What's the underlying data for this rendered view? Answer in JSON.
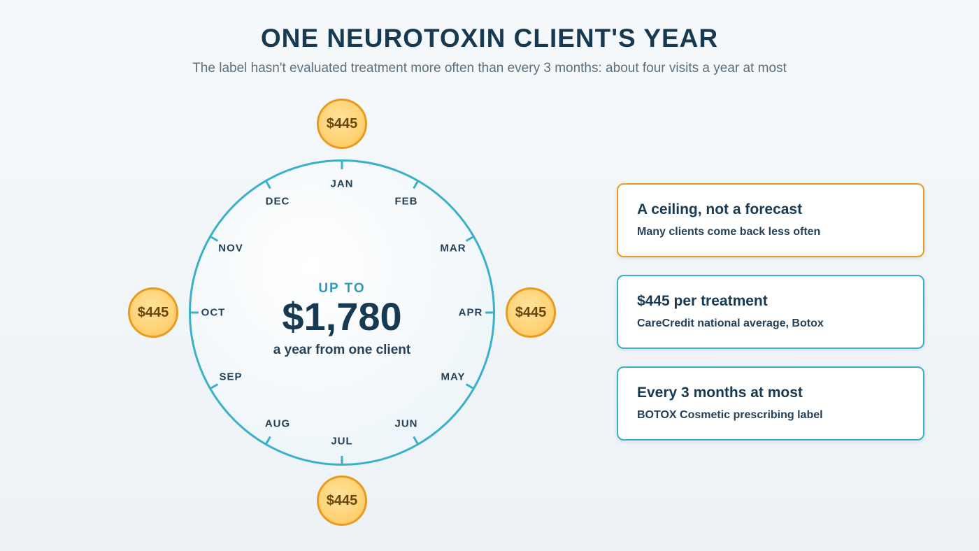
{
  "title": "ONE NEUROTOXIN CLIENT'S YEAR",
  "subtitle": "The label hasn't evaluated treatment more often than every 3 months: about four visits a year at most",
  "dial": {
    "months": [
      "JAN",
      "FEB",
      "MAR",
      "APR",
      "MAY",
      "JUN",
      "JUL",
      "AUG",
      "SEP",
      "OCT",
      "NOV",
      "DEC"
    ],
    "center": {
      "prefix": "UP TO",
      "amount": "$1,780",
      "caption": "a year from one client"
    },
    "treatments": [
      {
        "month": "JAN",
        "price": "$445"
      },
      {
        "month": "APR",
        "price": "$445"
      },
      {
        "month": "JUL",
        "price": "$445"
      },
      {
        "month": "OCT",
        "price": "$445"
      }
    ]
  },
  "cards": [
    {
      "title": "A ceiling, not a forecast",
      "text": "Many clients come back less often",
      "accent": "#e89b1f"
    },
    {
      "title": "$445 per treatment",
      "text": "CareCredit national average, Botox",
      "accent": "#3bb0c9"
    },
    {
      "title": "Every 3 months at most",
      "text": "BOTOX Cosmetic prescribing label",
      "accent": "#3bb0c9"
    }
  ],
  "colors": {
    "ring": "#3bb0c9",
    "coin_border": "#e89b1f",
    "coin_fill": "#ffd275",
    "heading": "#173a52"
  }
}
